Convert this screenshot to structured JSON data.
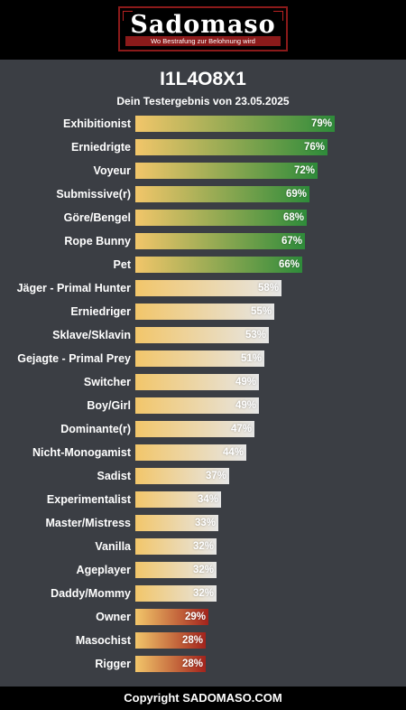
{
  "header": {
    "logo_text": "Sadomaso",
    "tagline": "Wo Bestrafung zur Belohnung wird"
  },
  "title": "I1L4O8X1",
  "subtitle": "Dein Testergebnis von 23.05.2025",
  "footer": "Copyright SADOMASO.COM",
  "colors": {
    "background": "#3b3e44",
    "bar_start": "#f2c66a",
    "high": "#2e8b3a",
    "mid": "#e6e6e6",
    "low": "#a3231c"
  },
  "chart_data": {
    "type": "bar",
    "orientation": "horizontal",
    "title": "I1L4O8X1",
    "subtitle": "Dein Testergebnis von 23.05.2025",
    "xlim": [
      0,
      100
    ],
    "unit": "%",
    "grid": false,
    "categories": [
      "Exhibitionist",
      "Erniedrigte",
      "Voyeur",
      "Submissive(r)",
      "Göre/Bengel",
      "Rope Bunny",
      "Pet",
      "Jäger - Primal Hunter",
      "Erniedriger",
      "Sklave/Sklavin",
      "Gejagte - Primal Prey",
      "Switcher",
      "Boy/Girl",
      "Dominante(r)",
      "Nicht-Monogamist",
      "Sadist",
      "Experimentalist",
      "Master/Mistress",
      "Vanilla",
      "Ageplayer",
      "Daddy/Mommy",
      "Owner",
      "Masochist",
      "Rigger"
    ],
    "values": [
      79,
      76,
      72,
      69,
      68,
      67,
      66,
      58,
      55,
      53,
      51,
      49,
      49,
      47,
      44,
      37,
      34,
      33,
      32,
      32,
      32,
      29,
      28,
      28
    ],
    "labels": [
      "79%",
      "76%",
      "72%",
      "69%",
      "68%",
      "67%",
      "66%",
      "58%",
      "55%",
      "53%",
      "51%",
      "49%",
      "49%",
      "47%",
      "44%",
      "37%",
      "34%",
      "33%",
      "32%",
      "32%",
      "32%",
      "29%",
      "28%",
      "28%"
    ],
    "levels": [
      "high",
      "high",
      "high",
      "high",
      "high",
      "high",
      "high",
      "mid",
      "mid",
      "mid",
      "mid",
      "mid",
      "mid",
      "mid",
      "mid",
      "mid",
      "mid",
      "mid",
      "mid",
      "mid",
      "mid",
      "low",
      "low",
      "low"
    ]
  }
}
